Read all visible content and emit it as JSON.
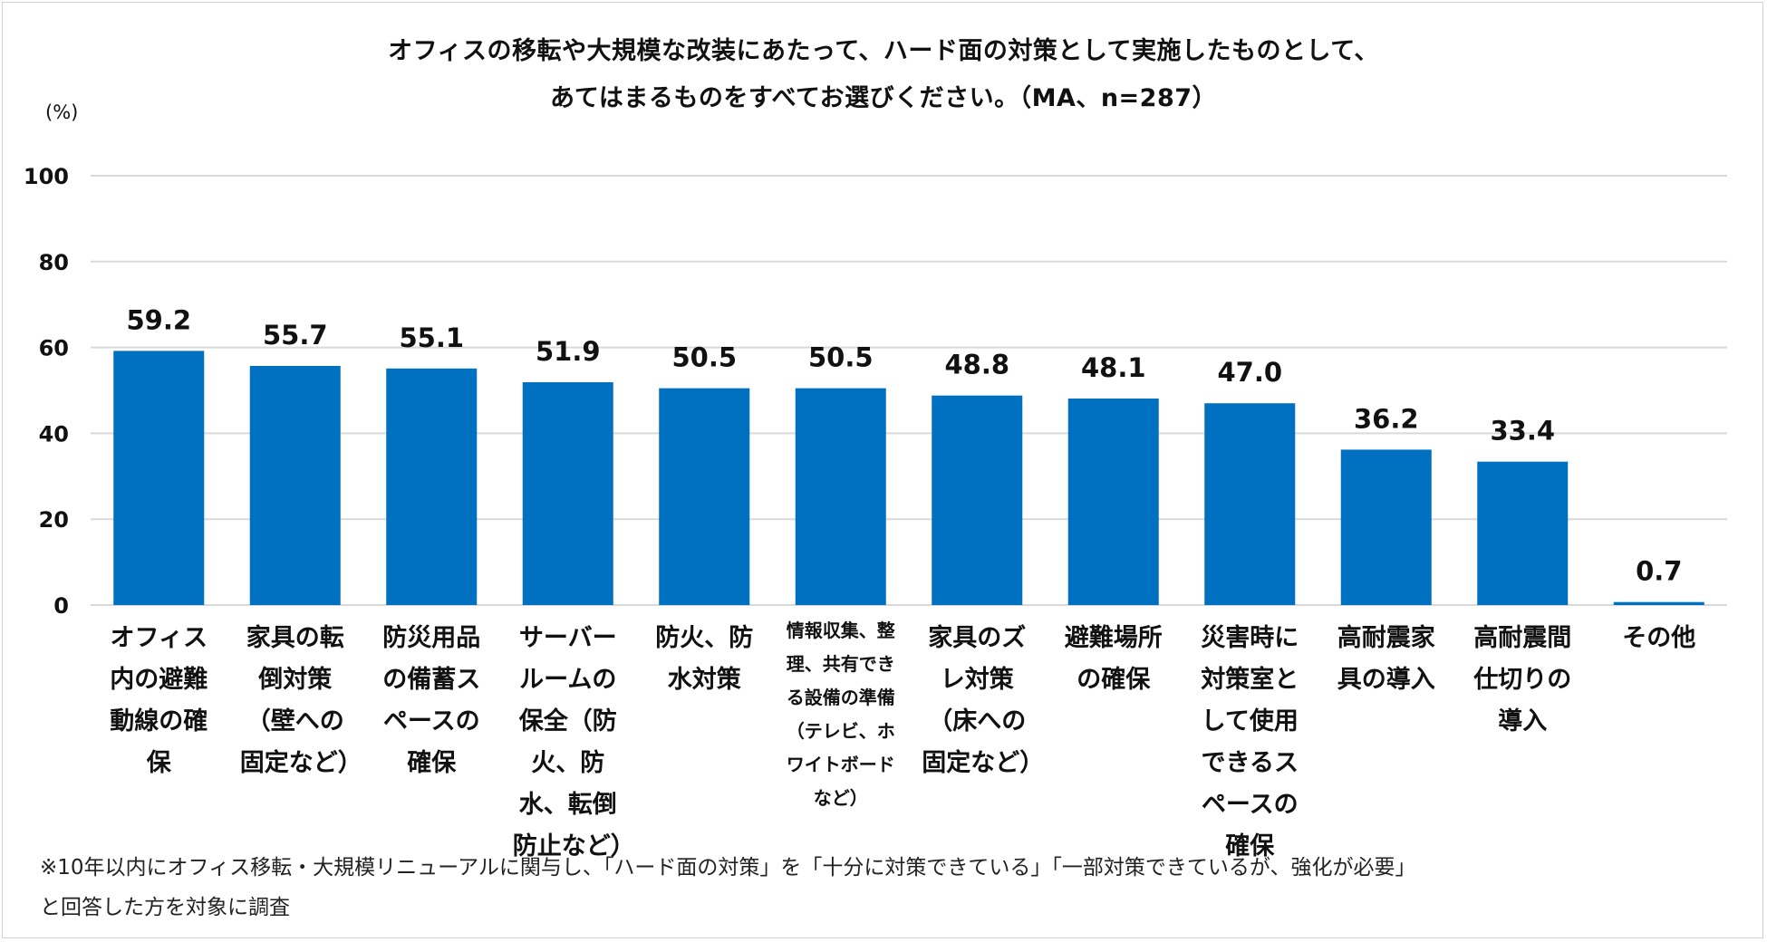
{
  "chart_data": {
    "type": "bar",
    "title_line1": "オフィスの移転や大規模な改装にあたって、ハード面の対策として実施したものとして、",
    "title_line2": "あてはまるものをすべてお選びください。（MA、n=287）",
    "ylabel": "(%)",
    "ylim": [
      0,
      100
    ],
    "yticks": [
      "0",
      "20",
      "40",
      "60",
      "80",
      "100"
    ],
    "ytick_values": [
      0,
      20,
      40,
      60,
      80,
      100
    ],
    "grid": true,
    "categories": [
      "オフィス内の避難動線の確保",
      "家具の転倒対策（壁への固定など）",
      "防災用品の備蓄スペースの確保",
      "サーバールームの保全（防火、防水、転倒防止など）",
      "防火、防水対策",
      "情報収集、整理、共有できる設備の準備（テレビ、ホワイトボードなど）",
      "家具のズレ対策（床への固定など）",
      "避難場所の確保",
      "災害時に対策室として使用できるスペースの確保",
      "高耐震家具の導入",
      "高耐震間仕切りの導入",
      "その他"
    ],
    "values": [
      59.2,
      55.7,
      55.1,
      51.9,
      50.5,
      50.5,
      48.8,
      48.1,
      47.0,
      36.2,
      33.4,
      0.7
    ],
    "value_labels": [
      "59.2",
      "55.7",
      "55.1",
      "51.9",
      "50.5",
      "50.5",
      "48.8",
      "48.1",
      "47.0",
      "36.2",
      "33.4",
      "0.7"
    ],
    "bar_color": "#0070C0",
    "grid_color": "#d9d9d9"
  },
  "footnote_line1": "※10年以内にオフィス移転・大規模リニューアルに関与し、「ハード面の対策」を「十分に対策できている」「一部対策できているが、強化が必要」",
  "footnote_line2": "と回答した方を対象に調査"
}
